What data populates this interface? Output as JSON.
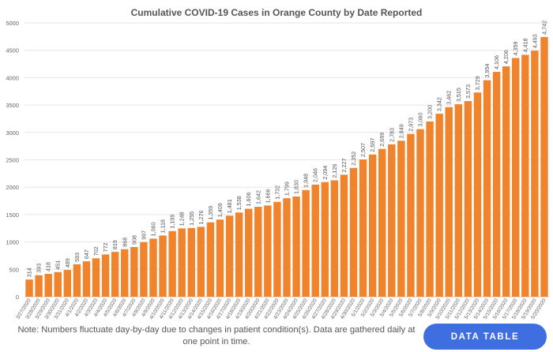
{
  "chart_data": {
    "type": "bar",
    "title": "Cumulative COVID-19 Cases in Orange County by Date Reported",
    "xlabel": "",
    "ylabel": "",
    "ylim": [
      0,
      5000
    ],
    "yticks": [
      "0",
      "500",
      "1000",
      "1500",
      "2000",
      "2500",
      "3000",
      "3500",
      "4000",
      "4500",
      "5000"
    ],
    "grid": "horizontal",
    "bar_color": "#f0842d",
    "categories": [
      "3/27/2020",
      "3/28/2020",
      "3/29/2020",
      "3/30/2020",
      "3/31/2020",
      "4/1/2020",
      "4/2/2020",
      "4/3/2020",
      "4/4/2020",
      "4/5/2020",
      "4/6/2020",
      "4/7/2020",
      "4/8/2020",
      "4/9/2020",
      "4/10/2020",
      "4/11/2020",
      "4/12/2020",
      "4/13/2020",
      "4/14/2020",
      "4/15/2020",
      "4/16/2020",
      "4/17/2020",
      "4/18/2020",
      "4/19/2020",
      "4/20/2020",
      "4/21/2020",
      "4/22/2020",
      "4/23/2020",
      "4/24/2020",
      "4/25/2020",
      "4/26/2020",
      "4/27/2020",
      "4/28/2020",
      "4/29/2020",
      "4/30/2020",
      "5/1/2020",
      "5/2/2020",
      "5/3/2020",
      "5/4/2020",
      "5/5/2020",
      "5/6/2020",
      "5/7/2020",
      "5/8/2020",
      "5/9/2020",
      "5/10/2020",
      "5/11/2020",
      "5/12/2020",
      "5/13/2020",
      "5/14/2020",
      "5/15/2020",
      "5/16/2020",
      "5/17/2020",
      "5/18/2020",
      "5/19/2020",
      "5/20/2020"
    ],
    "values": [
      314,
      393,
      418,
      451,
      489,
      593,
      647,
      702,
      772,
      819,
      868,
      908,
      997,
      1060,
      1118,
      1199,
      1248,
      1255,
      1276,
      1359,
      1409,
      1481,
      1538,
      1606,
      1642,
      1666,
      1732,
      1799,
      1830,
      1948,
      2046,
      2094,
      2126,
      2227,
      2352,
      2507,
      2597,
      2699,
      2783,
      2849,
      2973,
      3060,
      3200,
      3342,
      3462,
      3515,
      3573,
      3729,
      3954,
      4106,
      4206,
      4359,
      4418,
      4493,
      4742
    ],
    "value_labels": [
      "314",
      "393",
      "418",
      "451",
      "489",
      "593",
      "647",
      "702",
      "772",
      "819",
      "868",
      "908",
      "997",
      "1,060",
      "1,118",
      "1,199",
      "1,248",
      "1,255",
      "1,276",
      "1,359",
      "1,409",
      "1,481",
      "1,538",
      "1,606",
      "1,642",
      "1,666",
      "1,732",
      "1,799",
      "1,830",
      "1,948",
      "2,046",
      "2,094",
      "2,126",
      "2,227",
      "2,352",
      "2,507",
      "2,597",
      "2,699",
      "2,783",
      "2,849",
      "2,973",
      "3,060",
      "3,200",
      "3,342",
      "3,462",
      "3,515",
      "3,573",
      "3,729",
      "3,954",
      "4,106",
      "4,206",
      "4,359",
      "4,418",
      "4,493",
      "4,742"
    ]
  },
  "footer": {
    "note": "Note: Numbers fluctuate day-by-day due to changes in patient condition(s). Data are gathered daily at one point in time.",
    "button_label": "DATA TABLE"
  }
}
